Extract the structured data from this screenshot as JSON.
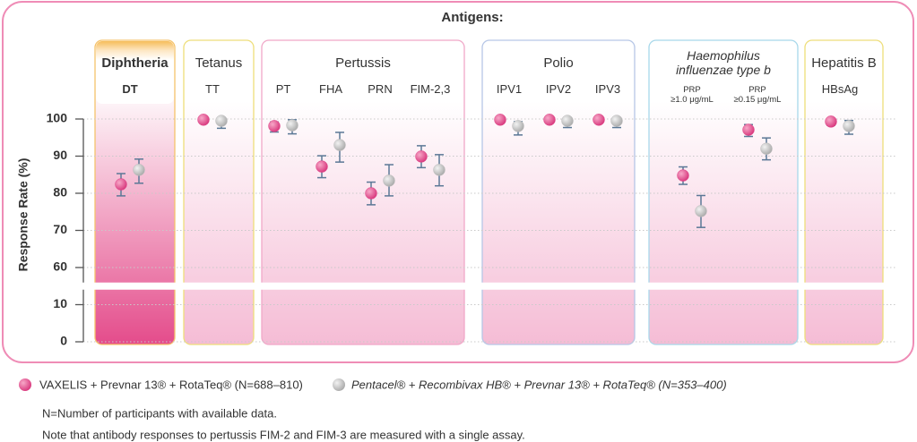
{
  "chart_data": {
    "type": "dot_error",
    "title": "Antigens:",
    "y_label": "Response Rate (%)",
    "ylim": [
      0,
      100
    ],
    "yticks": [
      0,
      10,
      60,
      70,
      80,
      90,
      100
    ],
    "ybreak": [
      10,
      60
    ],
    "grid": true,
    "groups": [
      {
        "name": "Diphtheria",
        "color": "#f5c26b",
        "members": [
          0
        ],
        "highlight": true
      },
      {
        "name": "Tetanus",
        "color": "#eede7a",
        "members": [
          1
        ]
      },
      {
        "name": "Pertussis",
        "color": "#f0a8c8",
        "members": [
          2,
          3,
          4,
          5
        ]
      },
      {
        "name": "Polio",
        "color": "#b6c6e6",
        "members": [
          6,
          7,
          8
        ]
      },
      {
        "name": "Haemophilus influenzae type b",
        "color": "#a8d8ea",
        "members": [
          9,
          10
        ]
      },
      {
        "name": "Hepatitis B",
        "color": "#eede7a",
        "members": [
          11
        ]
      }
    ],
    "categories": [
      "DT",
      "TT",
      "PT",
      "FHA",
      "PRN",
      "FIM-2,3",
      "IPV1",
      "IPV2",
      "IPV3",
      "PRP\n≥1.0 μg/mL",
      "PRP\n≥0.15 μg/mL",
      "HBsAg"
    ],
    "series": [
      {
        "name": "VAXELIS + Prevnar 13® + RotaTeq® (N=688–810)",
        "color": "#e0478a",
        "values": [
          82.4,
          99.8,
          98.1,
          87.2,
          80.0,
          89.9,
          99.8,
          99.8,
          99.8,
          84.8,
          97.1,
          99.3
        ],
        "lower": [
          79.3,
          99.3,
          96.5,
          84.2,
          76.9,
          86.9,
          99.2,
          99.3,
          99.3,
          82.4,
          95.3,
          98.3
        ],
        "upper": [
          85.3,
          100,
          99.2,
          90.1,
          83.0,
          92.8,
          100,
          100,
          100,
          87.1,
          98.5,
          99.8
        ]
      },
      {
        "name": "Pentacel® + Recombivax HB® + Prevnar 13® + RotaTeq® (N=353–400)",
        "color": "#bdbdbd",
        "values": [
          86.3,
          99.5,
          98.3,
          93.0,
          83.4,
          86.3,
          98.1,
          99.5,
          99.5,
          75.2,
          92.0,
          98.1
        ],
        "lower": [
          82.7,
          97.5,
          96.0,
          88.4,
          79.3,
          82.0,
          95.7,
          97.7,
          97.7,
          70.8,
          89.0,
          95.9
        ],
        "upper": [
          89.2,
          100,
          99.8,
          96.4,
          87.7,
          90.4,
          99.3,
          100,
          100,
          79.4,
          94.9,
          99.6
        ]
      }
    ],
    "notes": [
      "N=Number of participants with available data.",
      "Note that antibody responses to pertussis FIM-2 and FIM-3 are measured with a single assay."
    ]
  }
}
